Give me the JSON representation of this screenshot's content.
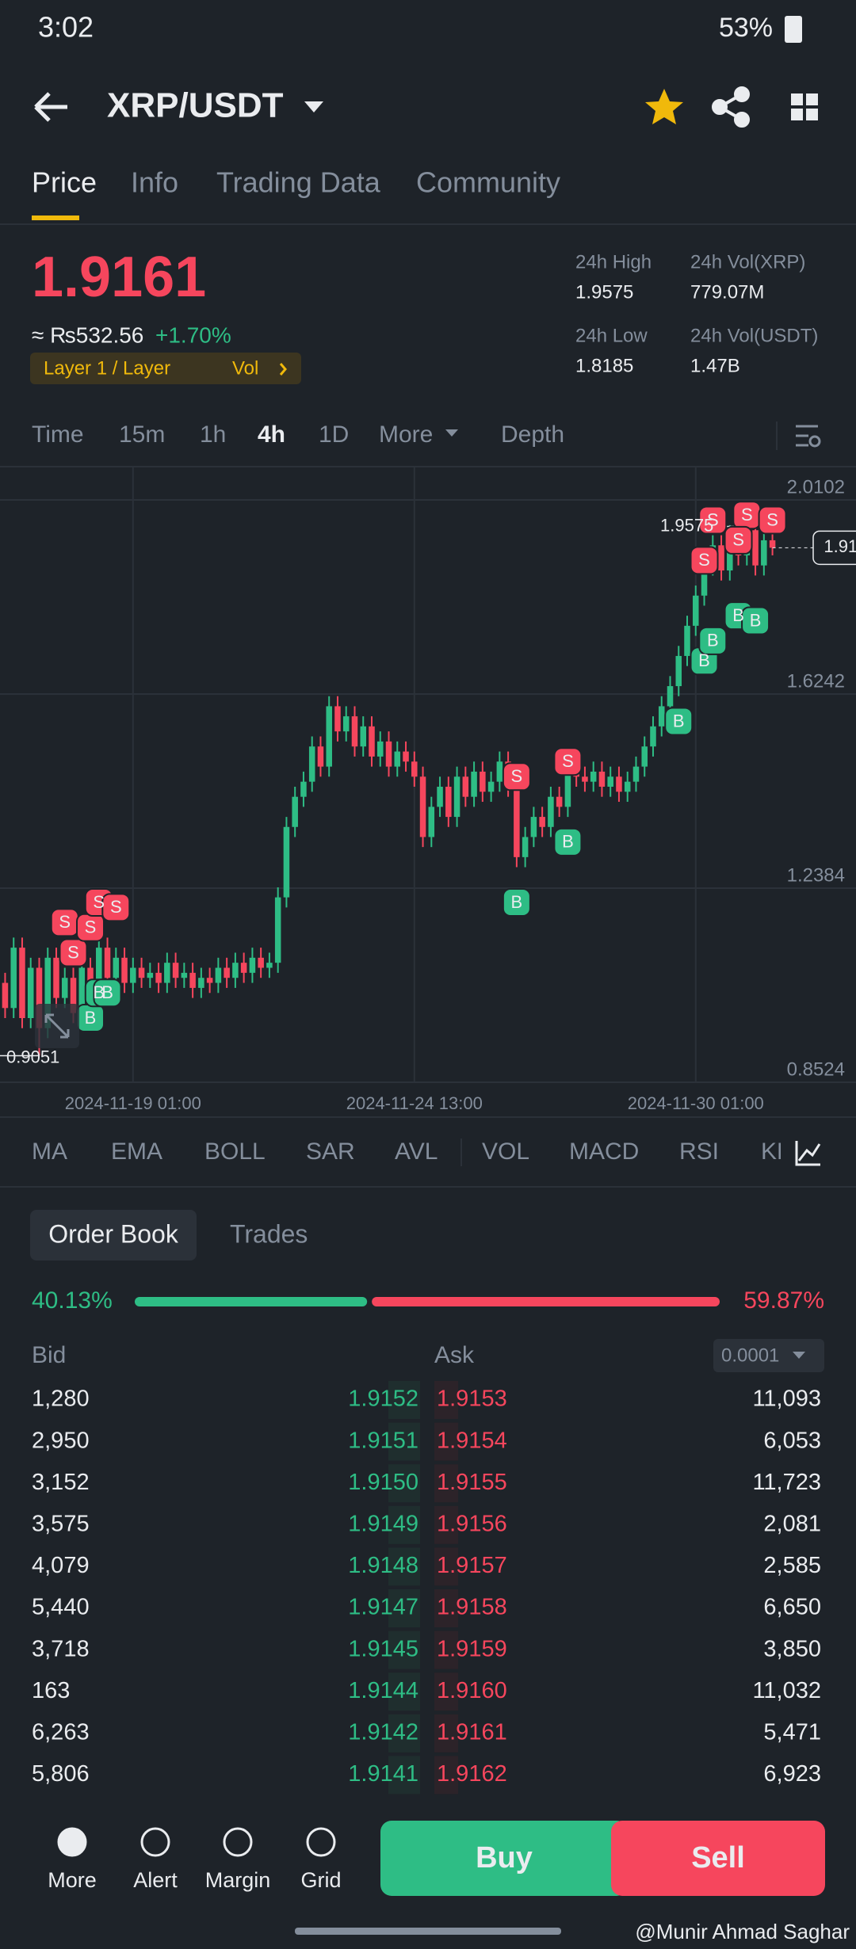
{
  "status_bar": {
    "time": "3:02",
    "battery": "53%"
  },
  "header": {
    "pair": "XRP/USDT"
  },
  "tabs": [
    "Price",
    "Info",
    "Trading Data",
    "Community"
  ],
  "price": {
    "last": "1.9161",
    "fiat": "≈ ₨532.56",
    "change": "+1.70%",
    "tag": "Layer 1 / Layer",
    "tag2": "Vol"
  },
  "stats": [
    {
      "label": "24h High",
      "value": "1.9575"
    },
    {
      "label": "24h Vol(XRP)",
      "value": "779.07M"
    },
    {
      "label": "24h Low",
      "value": "1.8185"
    },
    {
      "label": "24h Vol(USDT)",
      "value": "1.47B"
    }
  ],
  "intervals": [
    "Time",
    "15m",
    "1h",
    "4h",
    "1D",
    "More",
    "Depth"
  ],
  "chart_data": {
    "type": "candlestick",
    "up_color": "#2ebd85",
    "down_color": "#f6465d",
    "xlim": [
      -0.6,
      99.8
    ],
    "ylim": [
      0.8524,
      2.0764
    ],
    "yticks": [
      2.0102,
      1.6242,
      1.2384,
      0.8524
    ],
    "xticks": [
      {
        "value": 15,
        "label": "2024-11-19 01:00"
      },
      {
        "value": 48,
        "label": "2024-11-24 13:00"
      },
      {
        "value": 81,
        "label": "2024-11-30 01:00"
      }
    ],
    "grid": true,
    "candles": [
      [
        1.05,
        1.07,
        0.98,
        1.0
      ],
      [
        1.0,
        1.14,
        0.98,
        1.12
      ],
      [
        1.12,
        1.14,
        0.96,
        0.98
      ],
      [
        0.98,
        1.1,
        0.96,
        1.08
      ],
      [
        1.08,
        1.1,
        0.9051,
        0.96
      ],
      [
        0.96,
        1.12,
        0.94,
        1.1
      ],
      [
        1.1,
        1.12,
        1.0,
        1.02
      ],
      [
        1.02,
        1.08,
        1.0,
        1.06
      ],
      [
        1.06,
        1.08,
        0.97,
        0.99
      ],
      [
        0.99,
        1.1,
        0.97,
        1.08
      ],
      [
        1.08,
        1.1,
        1.02,
        1.04
      ],
      [
        1.04,
        1.14,
        1.02,
        1.12
      ],
      [
        1.12,
        1.14,
        1.04,
        1.06
      ],
      [
        1.06,
        1.12,
        1.04,
        1.1
      ],
      [
        1.1,
        1.12,
        1.03,
        1.05
      ],
      [
        1.05,
        1.1,
        1.03,
        1.08
      ],
      [
        1.08,
        1.1,
        1.04,
        1.06
      ],
      [
        1.06,
        1.09,
        1.04,
        1.07
      ],
      [
        1.07,
        1.09,
        1.03,
        1.05
      ],
      [
        1.05,
        1.11,
        1.03,
        1.09
      ],
      [
        1.09,
        1.11,
        1.04,
        1.06
      ],
      [
        1.06,
        1.09,
        1.04,
        1.07
      ],
      [
        1.07,
        1.09,
        1.02,
        1.04
      ],
      [
        1.04,
        1.08,
        1.02,
        1.06
      ],
      [
        1.06,
        1.08,
        1.03,
        1.05
      ],
      [
        1.05,
        1.1,
        1.03,
        1.08
      ],
      [
        1.08,
        1.1,
        1.04,
        1.06
      ],
      [
        1.06,
        1.11,
        1.04,
        1.09
      ],
      [
        1.09,
        1.11,
        1.05,
        1.07
      ],
      [
        1.07,
        1.12,
        1.05,
        1.1
      ],
      [
        1.1,
        1.12,
        1.06,
        1.08
      ],
      [
        1.08,
        1.11,
        1.06,
        1.09
      ],
      [
        1.09,
        1.24,
        1.07,
        1.22
      ],
      [
        1.22,
        1.38,
        1.2,
        1.36
      ],
      [
        1.36,
        1.44,
        1.34,
        1.42
      ],
      [
        1.42,
        1.47,
        1.4,
        1.45
      ],
      [
        1.45,
        1.54,
        1.43,
        1.52
      ],
      [
        1.52,
        1.54,
        1.46,
        1.48
      ],
      [
        1.48,
        1.62,
        1.46,
        1.6
      ],
      [
        1.6,
        1.62,
        1.53,
        1.55
      ],
      [
        1.55,
        1.6,
        1.53,
        1.58
      ],
      [
        1.58,
        1.6,
        1.5,
        1.52
      ],
      [
        1.52,
        1.58,
        1.5,
        1.56
      ],
      [
        1.56,
        1.58,
        1.48,
        1.5
      ],
      [
        1.5,
        1.55,
        1.48,
        1.53
      ],
      [
        1.53,
        1.55,
        1.46,
        1.48
      ],
      [
        1.48,
        1.53,
        1.46,
        1.51
      ],
      [
        1.51,
        1.53,
        1.47,
        1.49
      ],
      [
        1.49,
        1.51,
        1.44,
        1.46
      ],
      [
        1.46,
        1.48,
        1.32,
        1.34
      ],
      [
        1.34,
        1.42,
        1.32,
        1.4
      ],
      [
        1.4,
        1.46,
        1.38,
        1.44
      ],
      [
        1.44,
        1.46,
        1.36,
        1.38
      ],
      [
        1.38,
        1.48,
        1.36,
        1.46
      ],
      [
        1.46,
        1.48,
        1.4,
        1.42
      ],
      [
        1.42,
        1.49,
        1.4,
        1.47
      ],
      [
        1.47,
        1.49,
        1.41,
        1.43
      ],
      [
        1.43,
        1.47,
        1.41,
        1.45
      ],
      [
        1.45,
        1.51,
        1.43,
        1.49
      ],
      [
        1.49,
        1.51,
        1.42,
        1.44
      ],
      [
        1.44,
        1.46,
        1.28,
        1.3
      ],
      [
        1.3,
        1.36,
        1.28,
        1.34
      ],
      [
        1.34,
        1.4,
        1.32,
        1.38
      ],
      [
        1.38,
        1.4,
        1.34,
        1.36
      ],
      [
        1.36,
        1.44,
        1.34,
        1.42
      ],
      [
        1.42,
        1.44,
        1.38,
        1.4
      ],
      [
        1.4,
        1.5,
        1.38,
        1.48
      ],
      [
        1.48,
        1.5,
        1.44,
        1.46
      ],
      [
        1.46,
        1.48,
        1.43,
        1.45
      ],
      [
        1.45,
        1.49,
        1.43,
        1.47
      ],
      [
        1.47,
        1.49,
        1.42,
        1.44
      ],
      [
        1.44,
        1.48,
        1.42,
        1.46
      ],
      [
        1.46,
        1.48,
        1.41,
        1.43
      ],
      [
        1.43,
        1.47,
        1.41,
        1.45
      ],
      [
        1.45,
        1.5,
        1.43,
        1.48
      ],
      [
        1.48,
        1.54,
        1.46,
        1.52
      ],
      [
        1.52,
        1.58,
        1.5,
        1.56
      ],
      [
        1.56,
        1.62,
        1.54,
        1.6
      ],
      [
        1.6,
        1.66,
        1.58,
        1.64
      ],
      [
        1.64,
        1.72,
        1.62,
        1.7
      ],
      [
        1.7,
        1.78,
        1.68,
        1.76
      ],
      [
        1.76,
        1.84,
        1.74,
        1.82
      ],
      [
        1.82,
        1.9,
        1.8,
        1.88
      ],
      [
        1.88,
        1.94,
        1.86,
        1.92
      ],
      [
        1.92,
        1.94,
        1.85,
        1.87
      ],
      [
        1.87,
        1.96,
        1.85,
        1.94
      ],
      [
        1.94,
        1.95,
        1.88,
        1.9
      ],
      [
        1.9,
        1.9575,
        1.88,
        1.95
      ],
      [
        1.95,
        1.955,
        1.86,
        1.88
      ],
      [
        1.88,
        1.95,
        1.86,
        1.93
      ],
      [
        1.93,
        1.95,
        1.9,
        1.9152
      ]
    ],
    "marker_colors": {
      "S": "#f6465d",
      "B": "#2ebd85"
    },
    "markers": [
      {
        "label": "S",
        "x": 7,
        "y": 1.17
      },
      {
        "label": "S",
        "x": 8,
        "y": 1.11
      },
      {
        "label": "S",
        "x": 10,
        "y": 1.16
      },
      {
        "label": "S",
        "x": 11,
        "y": 1.21
      },
      {
        "label": "S",
        "x": 13,
        "y": 1.2
      },
      {
        "label": "B",
        "x": 10,
        "y": 0.98
      },
      {
        "label": "B",
        "x": 11,
        "y": 1.03
      },
      {
        "label": "B",
        "x": 12,
        "y": 1.03
      },
      {
        "label": "S",
        "x": 60,
        "y": 1.46
      },
      {
        "label": "S",
        "x": 66,
        "y": 1.49
      },
      {
        "label": "B",
        "x": 60,
        "y": 1.21
      },
      {
        "label": "B",
        "x": 66,
        "y": 1.33
      },
      {
        "label": "B",
        "x": 79,
        "y": 1.57
      },
      {
        "label": "B",
        "x": 82,
        "y": 1.69
      },
      {
        "label": "B",
        "x": 83,
        "y": 1.73
      },
      {
        "label": "B",
        "x": 86,
        "y": 1.78
      },
      {
        "label": "B",
        "x": 88,
        "y": 1.77
      },
      {
        "label": "S",
        "x": 83,
        "y": 1.97
      },
      {
        "label": "S",
        "x": 87,
        "y": 1.98
      },
      {
        "label": "S",
        "x": 90,
        "y": 1.97
      },
      {
        "label": "S",
        "x": 82,
        "y": 1.89
      },
      {
        "label": "S",
        "x": 86,
        "y": 1.93
      }
    ]
  },
  "indicators": [
    "MA",
    "EMA",
    "BOLL",
    "SAR",
    "AVL",
    "VOL",
    "MACD",
    "RSI",
    "KDJ"
  ],
  "order_book": {
    "tabs": [
      "Order Book",
      "Trades"
    ],
    "depth_ratio": {
      "bid": 40.13,
      "ask": 59.87,
      "bid_label": "40.13%",
      "ask_label": "59.87%"
    },
    "headers": {
      "bid": "Bid",
      "ask": "Ask",
      "precision": "0.0001"
    },
    "rows": [
      [
        "1,280",
        "1.9152",
        "1.9153",
        "11,093"
      ],
      [
        "2,950",
        "1.9151",
        "1.9154",
        "6,053"
      ],
      [
        "3,152",
        "1.9150",
        "1.9155",
        "11,723"
      ],
      [
        "3,575",
        "1.9149",
        "1.9156",
        "2,081"
      ],
      [
        "4,079",
        "1.9148",
        "1.9157",
        "2,585"
      ],
      [
        "5,440",
        "1.9147",
        "1.9158",
        "6,650"
      ],
      [
        "3,718",
        "1.9145",
        "1.9159",
        "3,850"
      ],
      [
        "163",
        "1.9144",
        "1.9160",
        "11,032"
      ],
      [
        "6,263",
        "1.9142",
        "1.9161",
        "5,471"
      ],
      [
        "5,806",
        "1.9141",
        "1.9162",
        "6,923"
      ]
    ]
  },
  "bottom_nav": [
    "More",
    "Alert",
    "Margin",
    "Grid"
  ],
  "actions": {
    "buy": "Buy",
    "sell": "Sell"
  },
  "watermark": "@Munir Ahmad Saghar"
}
